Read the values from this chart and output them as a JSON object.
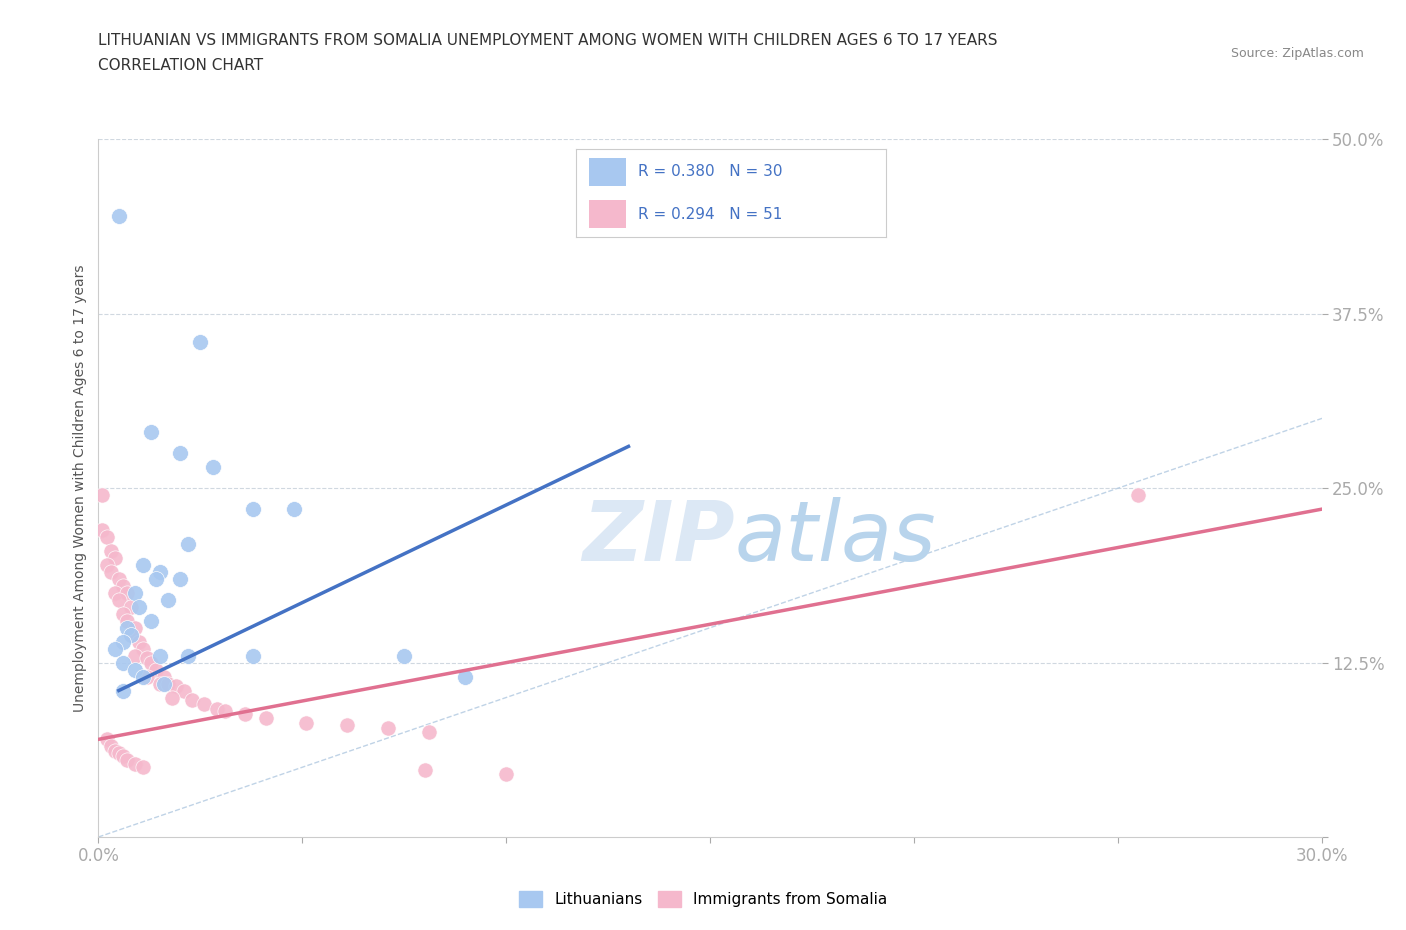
{
  "title_line1": "LITHUANIAN VS IMMIGRANTS FROM SOMALIA UNEMPLOYMENT AMONG WOMEN WITH CHILDREN AGES 6 TO 17 YEARS",
  "title_line2": "CORRELATION CHART",
  "source": "Source: ZipAtlas.com",
  "ylabel": "Unemployment Among Women with Children Ages 6 to 17 years",
  "xlim": [
    0.0,
    0.3
  ],
  "ylim": [
    0.0,
    0.5
  ],
  "xticks": [
    0.0,
    0.05,
    0.1,
    0.15,
    0.2,
    0.25,
    0.3
  ],
  "yticks": [
    0.0,
    0.125,
    0.25,
    0.375,
    0.5
  ],
  "blue_R": 0.38,
  "blue_N": 30,
  "pink_R": 0.294,
  "pink_N": 51,
  "blue_color": "#a8c8f0",
  "pink_color": "#f5b8cc",
  "blue_line_color": "#4472c4",
  "pink_line_color": "#e07090",
  "ref_line_color": "#b0c8e0",
  "legend_label_blue": "Lithuanians",
  "legend_label_pink": "Immigrants from Somalia",
  "blue_points": [
    [
      0.005,
      0.445
    ],
    [
      0.025,
      0.355
    ],
    [
      0.038,
      0.235
    ],
    [
      0.048,
      0.235
    ],
    [
      0.013,
      0.29
    ],
    [
      0.02,
      0.275
    ],
    [
      0.028,
      0.265
    ],
    [
      0.022,
      0.21
    ],
    [
      0.011,
      0.195
    ],
    [
      0.015,
      0.19
    ],
    [
      0.014,
      0.185
    ],
    [
      0.02,
      0.185
    ],
    [
      0.009,
      0.175
    ],
    [
      0.017,
      0.17
    ],
    [
      0.01,
      0.165
    ],
    [
      0.013,
      0.155
    ],
    [
      0.007,
      0.15
    ],
    [
      0.008,
      0.145
    ],
    [
      0.006,
      0.14
    ],
    [
      0.004,
      0.135
    ],
    [
      0.015,
      0.13
    ],
    [
      0.022,
      0.13
    ],
    [
      0.038,
      0.13
    ],
    [
      0.075,
      0.13
    ],
    [
      0.006,
      0.125
    ],
    [
      0.009,
      0.12
    ],
    [
      0.011,
      0.115
    ],
    [
      0.016,
      0.11
    ],
    [
      0.09,
      0.115
    ],
    [
      0.006,
      0.105
    ]
  ],
  "pink_points": [
    [
      0.001,
      0.245
    ],
    [
      0.001,
      0.22
    ],
    [
      0.002,
      0.215
    ],
    [
      0.003,
      0.205
    ],
    [
      0.004,
      0.2
    ],
    [
      0.002,
      0.195
    ],
    [
      0.003,
      0.19
    ],
    [
      0.005,
      0.185
    ],
    [
      0.006,
      0.18
    ],
    [
      0.004,
      0.175
    ],
    [
      0.007,
      0.175
    ],
    [
      0.005,
      0.17
    ],
    [
      0.008,
      0.165
    ],
    [
      0.006,
      0.16
    ],
    [
      0.007,
      0.155
    ],
    [
      0.009,
      0.15
    ],
    [
      0.008,
      0.145
    ],
    [
      0.01,
      0.14
    ],
    [
      0.011,
      0.135
    ],
    [
      0.009,
      0.13
    ],
    [
      0.012,
      0.128
    ],
    [
      0.013,
      0.125
    ],
    [
      0.014,
      0.12
    ],
    [
      0.012,
      0.115
    ],
    [
      0.016,
      0.115
    ],
    [
      0.015,
      0.11
    ],
    [
      0.017,
      0.11
    ],
    [
      0.019,
      0.108
    ],
    [
      0.021,
      0.105
    ],
    [
      0.018,
      0.1
    ],
    [
      0.023,
      0.098
    ],
    [
      0.026,
      0.095
    ],
    [
      0.029,
      0.092
    ],
    [
      0.031,
      0.09
    ],
    [
      0.036,
      0.088
    ],
    [
      0.041,
      0.085
    ],
    [
      0.051,
      0.082
    ],
    [
      0.061,
      0.08
    ],
    [
      0.071,
      0.078
    ],
    [
      0.081,
      0.075
    ],
    [
      0.002,
      0.07
    ],
    [
      0.003,
      0.065
    ],
    [
      0.004,
      0.062
    ],
    [
      0.005,
      0.06
    ],
    [
      0.006,
      0.058
    ],
    [
      0.007,
      0.055
    ],
    [
      0.009,
      0.052
    ],
    [
      0.011,
      0.05
    ],
    [
      0.08,
      0.048
    ],
    [
      0.1,
      0.045
    ],
    [
      0.255,
      0.245
    ]
  ],
  "blue_trendline": [
    [
      0.005,
      0.105
    ],
    [
      0.13,
      0.28
    ]
  ],
  "pink_trendline": [
    [
      0.0,
      0.07
    ],
    [
      0.3,
      0.235
    ]
  ],
  "ref_line": [
    [
      0.0,
      0.0
    ],
    [
      0.5,
      0.5
    ]
  ]
}
